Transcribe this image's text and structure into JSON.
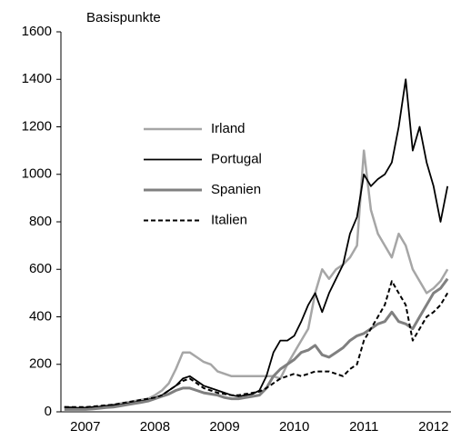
{
  "chart_data": {
    "type": "line",
    "y_label": "Basispunkte",
    "x": [
      2007.2,
      2007.3,
      2007.4,
      2007.5,
      2007.6,
      2007.7,
      2007.8,
      2007.9,
      2008.0,
      2008.1,
      2008.2,
      2008.3,
      2008.4,
      2008.5,
      2008.6,
      2008.7,
      2008.8,
      2008.9,
      2009.0,
      2009.1,
      2009.2,
      2009.3,
      2009.4,
      2009.5,
      2009.6,
      2009.7,
      2009.8,
      2009.9,
      2010.0,
      2010.1,
      2010.2,
      2010.3,
      2010.4,
      2010.5,
      2010.6,
      2010.7,
      2010.8,
      2010.9,
      2011.0,
      2011.1,
      2011.2,
      2011.3,
      2011.4,
      2011.5,
      2011.6,
      2011.7,
      2011.8,
      2011.9,
      2012.0,
      2012.1,
      2012.2,
      2012.3,
      2012.4,
      2012.5,
      2012.6,
      2012.7
    ],
    "xlim": [
      2007.15,
      2012.75
    ],
    "xticks": [
      {
        "value": 2007.5,
        "label": "2007"
      },
      {
        "value": 2008.5,
        "label": "2008"
      },
      {
        "value": 2009.5,
        "label": "2009"
      },
      {
        "value": 2010.5,
        "label": "2010"
      },
      {
        "value": 2011.5,
        "label": "2011"
      },
      {
        "value": 2012.5,
        "label": "2012"
      }
    ],
    "ylim": [
      0,
      1600
    ],
    "yticks": [
      0,
      200,
      400,
      600,
      800,
      1000,
      1200,
      1400,
      1600
    ],
    "series": [
      {
        "name": "Irland",
        "color": "#a6a6a6",
        "line_width": 2.5,
        "dashed": false,
        "values": [
          20,
          18,
          15,
          15,
          18,
          20,
          25,
          30,
          35,
          40,
          45,
          50,
          55,
          70,
          90,
          120,
          180,
          250,
          250,
          230,
          210,
          200,
          170,
          160,
          150,
          150,
          150,
          150,
          150,
          150,
          150,
          140,
          200,
          250,
          300,
          350,
          500,
          600,
          560,
          600,
          620,
          650,
          700,
          1100,
          850,
          750,
          700,
          650,
          750,
          700,
          600,
          550,
          500,
          520,
          550,
          600
        ]
      },
      {
        "name": "Portugal",
        "color": "#000000",
        "line_width": 1.8,
        "dashed": false,
        "values": [
          20,
          18,
          17,
          18,
          20,
          22,
          25,
          28,
          30,
          35,
          40,
          45,
          50,
          60,
          70,
          90,
          110,
          140,
          150,
          130,
          110,
          100,
          90,
          80,
          70,
          65,
          70,
          75,
          90,
          150,
          250,
          300,
          300,
          320,
          380,
          450,
          500,
          420,
          500,
          560,
          620,
          750,
          820,
          1000,
          950,
          980,
          1000,
          1050,
          1200,
          1400,
          1100,
          1200,
          1050,
          950,
          800,
          950
        ]
      },
      {
        "name": "Spanien",
        "color": "#808080",
        "line_width": 3,
        "dashed": false,
        "values": [
          10,
          10,
          10,
          10,
          12,
          15,
          18,
          20,
          25,
          30,
          35,
          40,
          45,
          55,
          65,
          75,
          90,
          100,
          100,
          90,
          80,
          75,
          70,
          60,
          55,
          55,
          60,
          65,
          70,
          100,
          150,
          180,
          200,
          220,
          250,
          260,
          280,
          240,
          230,
          250,
          270,
          300,
          320,
          330,
          350,
          370,
          380,
          420,
          380,
          370,
          350,
          400,
          450,
          500,
          520,
          560
        ]
      },
      {
        "name": "Italien",
        "color": "#000000",
        "line_width": 2,
        "dashed": true,
        "values": [
          20,
          20,
          20,
          20,
          22,
          25,
          28,
          30,
          35,
          40,
          45,
          50,
          55,
          60,
          70,
          90,
          110,
          130,
          140,
          120,
          100,
          90,
          80,
          75,
          70,
          70,
          75,
          80,
          85,
          100,
          120,
          140,
          150,
          160,
          150,
          160,
          170,
          170,
          170,
          160,
          150,
          180,
          200,
          300,
          350,
          400,
          450,
          550,
          500,
          450,
          300,
          350,
          400,
          420,
          450,
          500
        ]
      }
    ]
  }
}
